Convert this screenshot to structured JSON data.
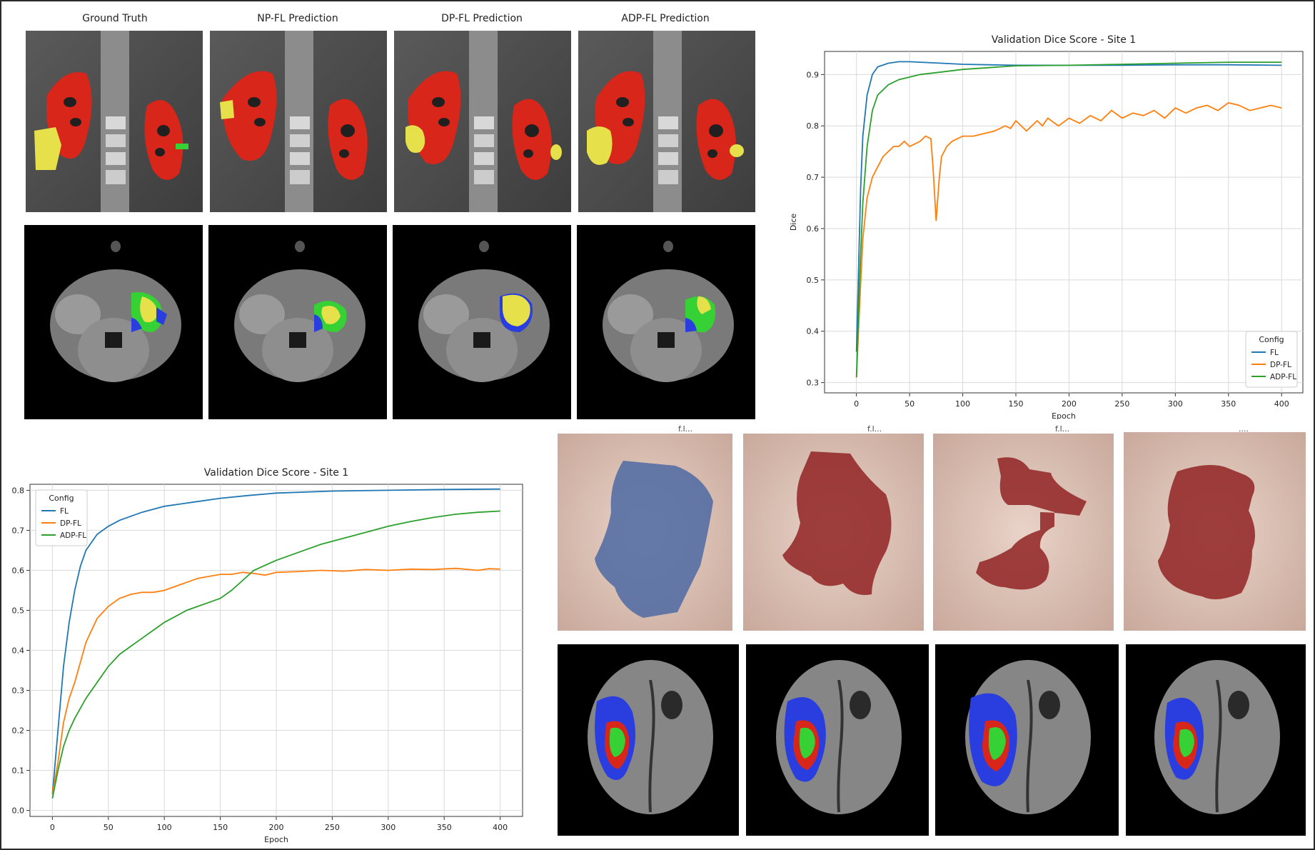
{
  "figure": {
    "column_titles": [
      "Ground Truth",
      "NP-FL Prediction",
      "DP-FL Prediction",
      "ADP-FL Prediction"
    ],
    "skin_caption_fragments": [
      "f.l...",
      "f.l...",
      "f.l...",
      "...."
    ]
  },
  "colors": {
    "fl": "#1f77b4",
    "dp_fl": "#ff7f0e",
    "adp_fl": "#2ca02c",
    "seg_red": "#d8261b",
    "seg_yellow": "#e6e04a",
    "seg_green": "#35d135",
    "seg_blue": "#2a3ee0"
  },
  "chart_data": [
    {
      "type": "line",
      "title": "Validation Dice Score - Site 1",
      "xlabel": "Epoch",
      "ylabel": "Dice",
      "xlim": [
        -30,
        420
      ],
      "ylim": [
        0.28,
        0.945
      ],
      "xticks": [
        0,
        50,
        100,
        150,
        200,
        250,
        300,
        350,
        400
      ],
      "yticks": [
        0.3,
        0.4,
        0.5,
        0.6,
        0.7,
        0.8,
        0.9
      ],
      "grid": true,
      "legend": {
        "title": "Config",
        "position": "bottom-right",
        "entries": [
          "FL",
          "DP-FL",
          "ADP-FL"
        ]
      },
      "series": [
        {
          "name": "FL",
          "x": [
            0,
            2,
            4,
            6,
            10,
            15,
            20,
            30,
            40,
            50,
            60,
            80,
            100,
            150,
            200,
            250,
            300,
            350,
            400
          ],
          "values": [
            0.36,
            0.52,
            0.68,
            0.78,
            0.86,
            0.9,
            0.915,
            0.922,
            0.925,
            0.925,
            0.924,
            0.922,
            0.92,
            0.918,
            0.918,
            0.918,
            0.919,
            0.919,
            0.918
          ]
        },
        {
          "name": "DP-FL",
          "x": [
            0,
            3,
            6,
            10,
            15,
            20,
            25,
            30,
            35,
            40,
            45,
            50,
            55,
            60,
            65,
            70,
            72,
            75,
            78,
            80,
            85,
            90,
            95,
            100,
            110,
            120,
            130,
            140,
            145,
            150,
            160,
            165,
            170,
            175,
            180,
            190,
            200,
            210,
            220,
            230,
            240,
            250,
            260,
            270,
            280,
            290,
            300,
            310,
            320,
            330,
            340,
            350,
            360,
            370,
            380,
            390,
            400
          ],
          "values": [
            0.31,
            0.45,
            0.58,
            0.66,
            0.7,
            0.72,
            0.74,
            0.75,
            0.76,
            0.76,
            0.77,
            0.76,
            0.765,
            0.77,
            0.78,
            0.775,
            0.72,
            0.615,
            0.7,
            0.74,
            0.76,
            0.77,
            0.775,
            0.78,
            0.78,
            0.785,
            0.79,
            0.8,
            0.795,
            0.81,
            0.79,
            0.8,
            0.81,
            0.8,
            0.815,
            0.8,
            0.815,
            0.805,
            0.82,
            0.81,
            0.83,
            0.815,
            0.825,
            0.82,
            0.83,
            0.815,
            0.835,
            0.825,
            0.835,
            0.84,
            0.83,
            0.845,
            0.84,
            0.83,
            0.835,
            0.84,
            0.835
          ]
        },
        {
          "name": "ADP-FL",
          "x": [
            0,
            3,
            6,
            10,
            15,
            20,
            30,
            40,
            50,
            60,
            80,
            100,
            150,
            200,
            250,
            300,
            350,
            400
          ],
          "values": [
            0.31,
            0.5,
            0.65,
            0.76,
            0.83,
            0.86,
            0.88,
            0.89,
            0.895,
            0.9,
            0.905,
            0.91,
            0.917,
            0.918,
            0.92,
            0.922,
            0.924,
            0.924
          ]
        }
      ]
    },
    {
      "type": "line",
      "title": "Validation Dice Score - Site 1",
      "xlabel": "Epoch",
      "ylabel": "Dice",
      "xlim": [
        -20,
        420
      ],
      "ylim": [
        -0.015,
        0.815
      ],
      "xticks": [
        0,
        50,
        100,
        150,
        200,
        250,
        300,
        350,
        400
      ],
      "yticks": [
        0.0,
        0.1,
        0.2,
        0.3,
        0.4,
        0.5,
        0.6,
        0.7,
        0.8
      ],
      "grid": true,
      "legend": {
        "title": "Config",
        "position": "top-left",
        "entries": [
          "FL",
          "DP-FL",
          "ADP-FL"
        ]
      },
      "series": [
        {
          "name": "FL",
          "x": [
            0,
            5,
            10,
            15,
            20,
            25,
            30,
            40,
            50,
            60,
            80,
            100,
            125,
            150,
            175,
            200,
            250,
            300,
            350,
            400
          ],
          "values": [
            0.04,
            0.2,
            0.36,
            0.47,
            0.55,
            0.61,
            0.65,
            0.69,
            0.71,
            0.725,
            0.745,
            0.76,
            0.77,
            0.78,
            0.787,
            0.793,
            0.798,
            0.8,
            0.802,
            0.803
          ]
        },
        {
          "name": "DP-FL",
          "x": [
            0,
            5,
            10,
            15,
            20,
            25,
            30,
            40,
            50,
            60,
            70,
            80,
            90,
            100,
            110,
            120,
            130,
            140,
            150,
            160,
            170,
            180,
            190,
            200,
            220,
            240,
            260,
            280,
            300,
            320,
            340,
            360,
            380,
            390,
            400
          ],
          "values": [
            0.04,
            0.12,
            0.22,
            0.28,
            0.32,
            0.37,
            0.42,
            0.48,
            0.51,
            0.53,
            0.54,
            0.545,
            0.545,
            0.55,
            0.56,
            0.57,
            0.58,
            0.585,
            0.59,
            0.59,
            0.595,
            0.592,
            0.588,
            0.595,
            0.597,
            0.6,
            0.598,
            0.602,
            0.6,
            0.603,
            0.602,
            0.605,
            0.6,
            0.604,
            0.603
          ]
        },
        {
          "name": "ADP-FL",
          "x": [
            0,
            5,
            10,
            15,
            20,
            30,
            40,
            50,
            60,
            70,
            80,
            90,
            100,
            110,
            120,
            130,
            140,
            150,
            160,
            170,
            180,
            200,
            220,
            240,
            260,
            280,
            300,
            320,
            340,
            360,
            380,
            400
          ],
          "values": [
            0.03,
            0.1,
            0.16,
            0.2,
            0.23,
            0.28,
            0.32,
            0.36,
            0.39,
            0.41,
            0.43,
            0.45,
            0.47,
            0.485,
            0.5,
            0.51,
            0.52,
            0.53,
            0.55,
            0.575,
            0.6,
            0.625,
            0.645,
            0.665,
            0.68,
            0.695,
            0.71,
            0.722,
            0.732,
            0.74,
            0.745,
            0.748
          ]
        }
      ]
    }
  ]
}
